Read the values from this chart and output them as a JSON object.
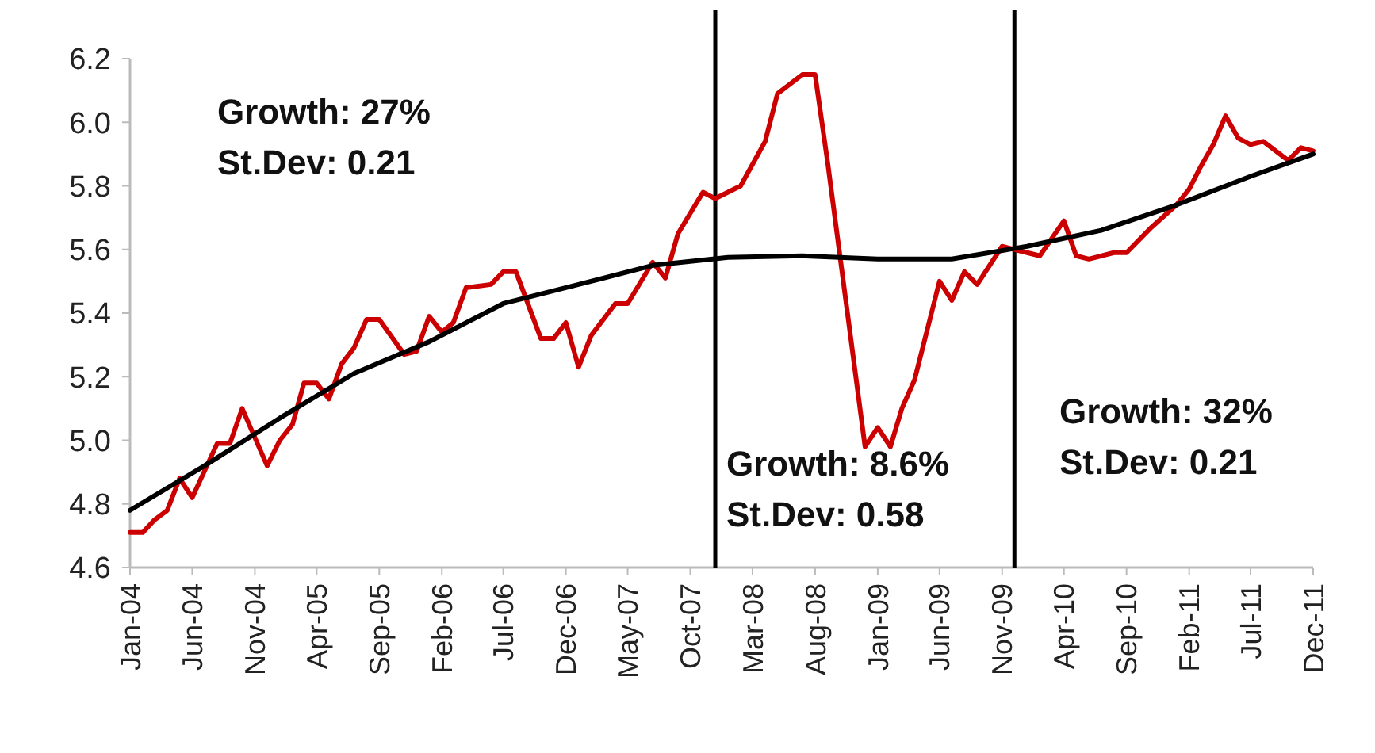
{
  "chart_data": {
    "type": "line",
    "xlim": [
      "2004-01",
      "2011-12"
    ],
    "xticks": [
      {
        "value": "2004-01",
        "label": "Jan-04"
      },
      {
        "value": "2004-06",
        "label": "Jun-04"
      },
      {
        "value": "2004-11",
        "label": "Nov-04"
      },
      {
        "value": "2005-04",
        "label": "Apr-05"
      },
      {
        "value": "2005-09",
        "label": "Sep-05"
      },
      {
        "value": "2006-02",
        "label": "Feb-06"
      },
      {
        "value": "2006-07",
        "label": "Jul-06"
      },
      {
        "value": "2006-12",
        "label": "Dec-06"
      },
      {
        "value": "2007-05",
        "label": "May-07"
      },
      {
        "value": "2007-10",
        "label": "Oct-07"
      },
      {
        "value": "2008-03",
        "label": "Mar-08"
      },
      {
        "value": "2008-08",
        "label": "Aug-08"
      },
      {
        "value": "2009-01",
        "label": "Jan-09"
      },
      {
        "value": "2009-06",
        "label": "Jun-09"
      },
      {
        "value": "2009-11",
        "label": "Nov-09"
      },
      {
        "value": "2010-04",
        "label": "Apr-10"
      },
      {
        "value": "2010-09",
        "label": "Sep-10"
      },
      {
        "value": "2011-02",
        "label": "Feb-11"
      },
      {
        "value": "2011-07",
        "label": "Jul-11"
      },
      {
        "value": "2011-12",
        "label": "Dec-11"
      }
    ],
    "ylim": [
      4.6,
      6.2
    ],
    "yticks": [
      4.6,
      4.8,
      {
        "value": 5.0,
        "label": "5.0"
      },
      5.2,
      5.4,
      5.6,
      5.8,
      {
        "value": 6.0,
        "label": "6.0"
      },
      6.2
    ],
    "grid": false,
    "series": [
      {
        "color": "#cc0000",
        "x": [
          "2004-01",
          "2004-02",
          "2004-03",
          "2004-04",
          "2004-05",
          "2004-06",
          "2004-08",
          "2004-09",
          "2004-10",
          "2004-12",
          "2005-01",
          "2005-02",
          "2005-03",
          "2005-04",
          "2005-05",
          "2005-06",
          "2005-07",
          "2005-08",
          "2005-09",
          "2005-11",
          "2005-12",
          "2006-01",
          "2006-02",
          "2006-03",
          "2006-04",
          "2006-06",
          "2006-07",
          "2006-08",
          "2006-10",
          "2006-11",
          "2006-12",
          "2007-01",
          "2007-02",
          "2007-04",
          "2007-05",
          "2007-07",
          "2007-08",
          "2007-09",
          "2007-11",
          "2007-12",
          "2008-02",
          "2008-04",
          "2008-05",
          "2008-07",
          "2008-08",
          "2008-09",
          "2008-12",
          "2009-01",
          "2009-02",
          "2009-03",
          "2009-04",
          "2009-06",
          "2009-07",
          "2009-08",
          "2009-09",
          "2009-11",
          "2009-12",
          "2010-02",
          "2010-04",
          "2010-05",
          "2010-06",
          "2010-08",
          "2010-09",
          "2010-11",
          "2011-01",
          "2011-02",
          "2011-03",
          "2011-04",
          "2011-05",
          "2011-06",
          "2011-07",
          "2011-08",
          "2011-10",
          "2011-11",
          "2011-12"
        ],
        "values": [
          4.71,
          4.71,
          4.75,
          4.78,
          4.88,
          4.82,
          4.99,
          4.99,
          5.1,
          4.92,
          5.0,
          5.05,
          5.18,
          5.18,
          5.13,
          5.24,
          5.29,
          5.38,
          5.38,
          5.27,
          5.28,
          5.39,
          5.34,
          5.37,
          5.48,
          5.49,
          5.53,
          5.53,
          5.32,
          5.32,
          5.37,
          5.23,
          5.33,
          5.43,
          5.43,
          5.56,
          5.51,
          5.65,
          5.78,
          5.76,
          5.8,
          5.94,
          6.09,
          6.15,
          6.15,
          5.87,
          4.98,
          5.04,
          4.98,
          5.1,
          5.19,
          5.5,
          5.44,
          5.53,
          5.49,
          5.61,
          5.6,
          5.58,
          5.69,
          5.58,
          5.57,
          5.59,
          5.59,
          5.67,
          5.74,
          5.79,
          5.86,
          5.93,
          6.02,
          5.95,
          5.93,
          5.94,
          5.88,
          5.92,
          5.91
        ]
      },
      {
        "color": "#000000",
        "x": [
          "2004-01",
          "2004-07",
          "2005-01",
          "2005-07",
          "2006-01",
          "2006-07",
          "2007-01",
          "2007-07",
          "2008-01",
          "2008-07",
          "2009-01",
          "2009-07",
          "2010-01",
          "2010-07",
          "2011-01",
          "2011-07",
          "2011-12"
        ],
        "values": [
          4.78,
          4.92,
          5.07,
          5.21,
          5.31,
          5.43,
          5.49,
          5.55,
          5.575,
          5.58,
          5.57,
          5.57,
          5.61,
          5.66,
          5.74,
          5.83,
          5.9
        ]
      }
    ],
    "ref_lines": [
      {
        "axis": "x",
        "value": "2007-12",
        "color": "#000000"
      },
      {
        "axis": "x",
        "value": "2009-12",
        "color": "#000000"
      }
    ],
    "annotations": [
      "Growth: 27%",
      "St.Dev: 0.21",
      "Growth: 8.6%",
      "St.Dev: 0.58",
      "Growth: 32%",
      "St.Dev: 0.21"
    ]
  }
}
